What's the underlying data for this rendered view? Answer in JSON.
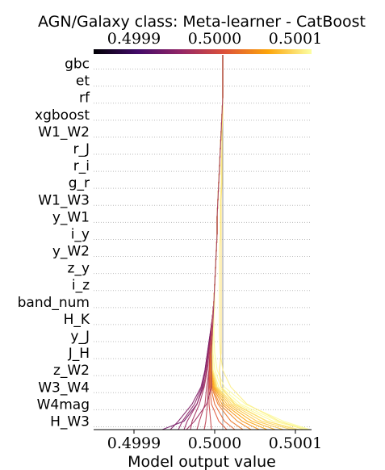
{
  "chart_data": {
    "type": "line",
    "title": "AGN/Galaxy class: Meta-learner - CatBoost",
    "xlabel": "Model output value",
    "ylabel": "",
    "xlim": [
      0.49985,
      0.50012
    ],
    "x_ticks": [
      0.4999,
      0.5,
      0.5001
    ],
    "x_tick_labels": [
      "0.4999",
      "0.5000",
      "0.5001"
    ],
    "base_value": 0.50001,
    "grid": "horizontal dotted",
    "colormap": [
      "#000004",
      "#420a68",
      "#932667",
      "#dd513a",
      "#fca50a",
      "#fcffa4"
    ],
    "features": [
      "gbc",
      "et",
      "rf",
      "xgboost",
      "W1_W2",
      "r_J",
      "r_i",
      "g_r",
      "W1_W3",
      "y_W1",
      "i_y",
      "y_W2",
      "z_y",
      "i_z",
      "band_num",
      "H_K",
      "y_J",
      "J_H",
      "z_W2",
      "W3_W4",
      "W4mag",
      "H_W3"
    ],
    "series": [
      {
        "values": [
          0.50001,
          0.50001,
          0.50001,
          0.500009,
          0.500008,
          0.500007,
          0.500006,
          0.500005,
          0.500004,
          0.500003,
          0.500003,
          0.500002,
          0.500001,
          0.5,
          0.499999,
          0.499997,
          0.499994,
          0.499991,
          0.499988,
          0.499985,
          0.499978,
          0.499962,
          0.499935
        ]
      },
      {
        "values": [
          0.50001,
          0.50001,
          0.50001,
          0.500009,
          0.500008,
          0.500007,
          0.500006,
          0.500005,
          0.500004,
          0.500003,
          0.500003,
          0.500002,
          0.500001,
          0.5,
          0.499999,
          0.499997,
          0.499994,
          0.499991,
          0.499988,
          0.499983,
          0.499972,
          0.499955,
          0.499945
        ]
      },
      {
        "values": [
          0.50001,
          0.50001,
          0.50001,
          0.500009,
          0.500008,
          0.500007,
          0.500006,
          0.500005,
          0.500004,
          0.500003,
          0.500003,
          0.500002,
          0.500001,
          0.5,
          0.499999,
          0.499997,
          0.499995,
          0.499992,
          0.499989,
          0.499984,
          0.499975,
          0.49996,
          0.499955
        ]
      },
      {
        "values": [
          0.50001,
          0.50001,
          0.50001,
          0.500009,
          0.500008,
          0.500007,
          0.500006,
          0.500005,
          0.500004,
          0.500003,
          0.500003,
          0.500002,
          0.500001,
          0.5,
          0.499999,
          0.499997,
          0.499995,
          0.499992,
          0.49999,
          0.499986,
          0.499978,
          0.499966,
          0.499962
        ]
      },
      {
        "values": [
          0.50001,
          0.50001,
          0.50001,
          0.500009,
          0.500008,
          0.500007,
          0.500006,
          0.500005,
          0.500004,
          0.500003,
          0.500003,
          0.500002,
          0.500001,
          0.5,
          0.499999,
          0.499997,
          0.499995,
          0.499993,
          0.499991,
          0.499987,
          0.499981,
          0.499972,
          0.49997
        ]
      },
      {
        "values": [
          0.50001,
          0.50001,
          0.50001,
          0.500009,
          0.500008,
          0.500007,
          0.500006,
          0.500005,
          0.500004,
          0.500003,
          0.500003,
          0.500002,
          0.500001,
          0.5,
          0.499999,
          0.499997,
          0.499996,
          0.499994,
          0.499993,
          0.49999,
          0.499988,
          0.499981,
          0.499978
        ]
      },
      {
        "values": [
          0.50001,
          0.50001,
          0.50001,
          0.500009,
          0.500008,
          0.500007,
          0.500006,
          0.500005,
          0.500004,
          0.500003,
          0.500003,
          0.500002,
          0.500001,
          0.5,
          0.499999,
          0.499998,
          0.499996,
          0.499994,
          0.499993,
          0.499992,
          0.499991,
          0.499989,
          0.499987
        ]
      },
      {
        "values": [
          0.50001,
          0.50001,
          0.50001,
          0.500009,
          0.500008,
          0.500007,
          0.500006,
          0.500005,
          0.500004,
          0.500003,
          0.500003,
          0.500002,
          0.500001,
          0.5,
          0.499999,
          0.499998,
          0.499997,
          0.499995,
          0.499994,
          0.499993,
          0.499993,
          0.499995,
          0.499996
        ]
      },
      {
        "values": [
          0.50001,
          0.50001,
          0.50001,
          0.500009,
          0.500008,
          0.500007,
          0.500006,
          0.500005,
          0.500004,
          0.500003,
          0.500003,
          0.500002,
          0.500001,
          0.5,
          0.499999,
          0.499998,
          0.499997,
          0.499995,
          0.499994,
          0.499994,
          0.499996,
          0.500005,
          0.500015
        ]
      },
      {
        "values": [
          0.50001,
          0.50001,
          0.50001,
          0.500009,
          0.500008,
          0.500007,
          0.500006,
          0.500005,
          0.500004,
          0.500003,
          0.500003,
          0.500002,
          0.500001,
          0.5,
          0.499999,
          0.499998,
          0.499997,
          0.499995,
          0.499994,
          0.499995,
          0.5,
          0.500012,
          0.500025
        ]
      },
      {
        "values": [
          0.50001,
          0.50001,
          0.50001,
          0.500009,
          0.500008,
          0.500007,
          0.500006,
          0.500005,
          0.500004,
          0.500003,
          0.500003,
          0.500002,
          0.500001,
          0.5,
          0.499999,
          0.499998,
          0.499997,
          0.499996,
          0.499995,
          0.499996,
          0.500004,
          0.50002,
          0.500035
        ]
      },
      {
        "values": [
          0.50001,
          0.50001,
          0.50001,
          0.500009,
          0.500008,
          0.500007,
          0.500006,
          0.500005,
          0.500004,
          0.500003,
          0.500003,
          0.500002,
          0.500001,
          0.5,
          0.499999,
          0.499998,
          0.499997,
          0.499996,
          0.499995,
          0.499997,
          0.500006,
          0.500028,
          0.500045
        ]
      },
      {
        "values": [
          0.50001,
          0.50001,
          0.50001,
          0.500009,
          0.500008,
          0.500007,
          0.500006,
          0.500005,
          0.500004,
          0.500003,
          0.500003,
          0.500002,
          0.500001,
          0.5,
          0.499999,
          0.499998,
          0.499997,
          0.499996,
          0.499995,
          0.499998,
          0.500009,
          0.500034,
          0.500055
        ]
      },
      {
        "values": [
          0.50001,
          0.50001,
          0.50001,
          0.500009,
          0.500008,
          0.500007,
          0.500006,
          0.500005,
          0.500004,
          0.500003,
          0.500003,
          0.500002,
          0.500001,
          0.5,
          0.499999,
          0.499998,
          0.499997,
          0.499996,
          0.499996,
          0.499999,
          0.500012,
          0.50004,
          0.500065
        ]
      },
      {
        "values": [
          0.50001,
          0.50001,
          0.50001,
          0.500009,
          0.500008,
          0.500007,
          0.500006,
          0.500005,
          0.500004,
          0.500003,
          0.500003,
          0.500002,
          0.500001,
          0.5,
          0.499999,
          0.499998,
          0.499997,
          0.499996,
          0.499996,
          0.5,
          0.500015,
          0.500046,
          0.500075
        ]
      },
      {
        "values": [
          0.50001,
          0.50001,
          0.50001,
          0.500009,
          0.500008,
          0.500007,
          0.500006,
          0.500005,
          0.500004,
          0.500003,
          0.500003,
          0.500002,
          0.500001,
          0.5,
          0.499999,
          0.499998,
          0.499997,
          0.499996,
          0.499997,
          0.500001,
          0.500018,
          0.500052,
          0.500085
        ]
      },
      {
        "values": [
          0.50001,
          0.50001,
          0.50001,
          0.500009,
          0.500008,
          0.500007,
          0.500006,
          0.500005,
          0.500004,
          0.500003,
          0.500003,
          0.500002,
          0.500001,
          0.5,
          0.499999,
          0.499998,
          0.499997,
          0.499997,
          0.499997,
          0.500002,
          0.500021,
          0.500058,
          0.500095
        ]
      },
      {
        "values": [
          0.50001,
          0.50001,
          0.50001,
          0.500009,
          0.500008,
          0.500007,
          0.500006,
          0.500005,
          0.500004,
          0.500003,
          0.500003,
          0.500002,
          0.500001,
          0.5,
          0.499999,
          0.499998,
          0.499997,
          0.499997,
          0.499998,
          0.500003,
          0.500024,
          0.500064,
          0.500105
        ]
      },
      {
        "values": [
          0.50001,
          0.50001,
          0.50001,
          0.500009,
          0.500008,
          0.500007,
          0.500006,
          0.500005,
          0.500004,
          0.500003,
          0.500003,
          0.500002,
          0.500001,
          0.5,
          0.499999,
          0.499998,
          0.499997,
          0.499997,
          0.499998,
          0.500005,
          0.500028,
          0.500072,
          0.500115
        ]
      },
      {
        "values": [
          0.50001,
          0.50001,
          0.50001,
          0.500009,
          0.500008,
          0.500007,
          0.500006,
          0.500005,
          0.500004,
          0.500003,
          0.500003,
          0.500002,
          0.500001,
          0.5,
          0.499999,
          0.499998,
          0.499998,
          0.499998,
          0.5,
          0.500008,
          0.500032,
          0.500078,
          0.500118
        ]
      },
      {
        "values": [
          0.50001,
          0.50001,
          0.50001,
          0.500009,
          0.500008,
          0.500007,
          0.500006,
          0.500005,
          0.500004,
          0.500003,
          0.500003,
          0.500002,
          0.500001,
          0.5,
          0.5,
          0.499999,
          0.499999,
          0.5,
          0.500003,
          0.500012,
          0.500038,
          0.500085,
          0.500118
        ]
      },
      {
        "values": [
          0.50001,
          0.50001,
          0.50001,
          0.50001,
          0.500009,
          0.500009,
          0.500008,
          0.500008,
          0.500007,
          0.500007,
          0.500007,
          0.500006,
          0.500006,
          0.500006,
          0.500006,
          0.500006,
          0.500006,
          0.500007,
          0.50001,
          0.50002,
          0.50004,
          0.50008,
          0.50011
        ]
      },
      {
        "values": [
          0.50001,
          0.50001,
          0.50001,
          0.50001,
          0.500009,
          0.500009,
          0.500009,
          0.500009,
          0.500008,
          0.500008,
          0.500008,
          0.500008,
          0.500008,
          0.500008,
          0.500008,
          0.500008,
          0.500008,
          0.500008,
          0.500006,
          0.500008,
          0.500025,
          0.500065,
          0.5001
        ]
      },
      {
        "values": [
          0.50001,
          0.50001,
          0.50001,
          0.500009,
          0.500008,
          0.500007,
          0.500006,
          0.500005,
          0.500004,
          0.500003,
          0.500003,
          0.500002,
          0.500001,
          0.5,
          0.499999,
          0.499998,
          0.499997,
          0.499996,
          0.499996,
          0.499996,
          0.49999,
          0.499975,
          0.499965
        ]
      }
    ]
  }
}
